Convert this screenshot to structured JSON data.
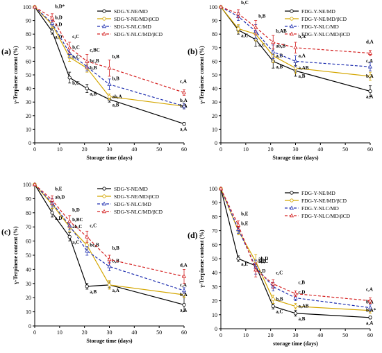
{
  "chart_data": [
    {
      "type": "line",
      "panel_label": "(a)",
      "xlabel": "Storage time (days)",
      "ylabel": "γ-Terpinene content (%)",
      "xlim": [
        0,
        60
      ],
      "ylim": [
        0,
        100
      ],
      "xticks": [
        0,
        10,
        20,
        30,
        40,
        50,
        60
      ],
      "yticks": [
        0,
        10,
        20,
        30,
        40,
        50,
        60,
        70,
        80,
        90,
        100
      ],
      "legend_position": "top-right",
      "x": [
        0,
        7,
        14,
        21,
        30,
        60
      ],
      "series": [
        {
          "name": "SDG-Y-NE/MD",
          "color": "#000000",
          "dashed": false,
          "values": [
            100,
            82,
            48,
            40,
            32,
            14
          ],
          "errors": [
            0,
            2,
            4,
            3,
            2,
            1
          ],
          "labels": [
            "",
            "a,D",
            "b,C",
            "a,B",
            "a,B",
            "a,A"
          ]
        },
        {
          "name": "SDG-Y-NE/MD/βCD",
          "color": "#d4a600",
          "dashed": false,
          "values": [
            100,
            87,
            63,
            55,
            34,
            27
          ],
          "errors": [
            0,
            2,
            3,
            3,
            2,
            2
          ],
          "labels": [
            "",
            "a,D",
            "b,C",
            "b,B",
            "ab,A",
            "b,A"
          ]
        },
        {
          "name": "SDG-Y-NLC/MD",
          "color": "#1f2fb0",
          "dashed": true,
          "values": [
            100,
            88,
            66,
            56,
            43,
            27
          ],
          "errors": [
            0,
            2,
            3,
            3,
            4,
            2
          ],
          "labels": [
            "",
            "b,D",
            "b,C",
            "bc,B",
            "b,B",
            "b,A"
          ]
        },
        {
          "name": "SDG-Y-NLC/MD/βCD",
          "color": "#d42020",
          "dashed": true,
          "values": [
            100,
            92,
            70,
            60,
            55,
            37
          ],
          "errors": [
            0,
            3,
            4,
            5,
            6,
            2
          ],
          "labels": [
            "",
            "b,D*",
            "c,C",
            "c,BC",
            "b,B",
            "c,A"
          ]
        }
      ]
    },
    {
      "type": "line",
      "panel_label": "(b)",
      "xlabel": "Storage time (days)",
      "ylabel": "γ-Terpinene content (%)",
      "xlim": [
        0,
        60
      ],
      "ylim": [
        0,
        100
      ],
      "xticks": [
        0,
        10,
        20,
        30,
        40,
        50,
        60
      ],
      "yticks": [
        0,
        10,
        20,
        30,
        40,
        50,
        60,
        70,
        80,
        90,
        100
      ],
      "legend_position": "top-right",
      "x": [
        0,
        7,
        14,
        21,
        30,
        60
      ],
      "series": [
        {
          "name": "FDG-Y-NE/MD",
          "color": "#000000",
          "dashed": false,
          "values": [
            100,
            83,
            76,
            60,
            53,
            38
          ],
          "errors": [
            0,
            3,
            5,
            5,
            4,
            4
          ],
          "labels": [
            "",
            "a,C",
            "a,C",
            "a,B",
            "a,B",
            "a,A"
          ]
        },
        {
          "name": "FDG-Y-NE/MD/βCD",
          "color": "#d4a600",
          "dashed": false,
          "values": [
            100,
            84,
            80,
            64,
            55,
            49
          ],
          "errors": [
            0,
            3,
            5,
            5,
            4,
            3
          ],
          "labels": [
            "",
            "",
            "",
            "a,B",
            "a,AB",
            "b,A"
          ]
        },
        {
          "name": "FDG-Y-NLC/MD",
          "color": "#1f2fb0",
          "dashed": true,
          "values": [
            100,
            93,
            82,
            67,
            60,
            56
          ],
          "errors": [
            0,
            3,
            5,
            5,
            4,
            3
          ],
          "labels": [
            "",
            "",
            "",
            "ab,B",
            "a,A",
            "c,A"
          ]
        },
        {
          "name": "FDG-Y-NLC/MD/βCD",
          "color": "#d42020",
          "dashed": true,
          "values": [
            100,
            95,
            85,
            74,
            70,
            66
          ],
          "errors": [
            0,
            3,
            5,
            5,
            4,
            2
          ],
          "labels": [
            "",
            "b,C",
            "b,B",
            "b,AB",
            "b,A",
            "d,A"
          ]
        }
      ]
    },
    {
      "type": "line",
      "panel_label": "(c)",
      "xlabel": "Storage time (days)",
      "ylabel": "γ-Terpinene content (%)",
      "xlim": [
        0,
        60
      ],
      "ylim": [
        0,
        100
      ],
      "xticks": [
        0,
        10,
        20,
        30,
        40,
        50,
        60
      ],
      "yticks": [
        0,
        10,
        20,
        30,
        40,
        50,
        60,
        70,
        80,
        90,
        100
      ],
      "legend_position": "top-right",
      "x": [
        0,
        7,
        14,
        21,
        30,
        60
      ],
      "series": [
        {
          "name": "SDG-Y-NE/MD",
          "color": "#000000",
          "dashed": false,
          "values": [
            100,
            80,
            63,
            28,
            29,
            15
          ],
          "errors": [
            0,
            3,
            3,
            2,
            2,
            5
          ],
          "labels": [
            "",
            "a,D",
            "a,C",
            "a,B",
            "a,A",
            "a,A"
          ]
        },
        {
          "name": "SDG-Y-NE/MD/βCD",
          "color": "#d4a600",
          "dashed": false,
          "values": [
            100,
            86,
            70,
            57,
            29,
            22
          ],
          "errors": [
            0,
            3,
            3,
            3,
            3,
            2
          ],
          "labels": [
            "",
            "",
            "ab,C",
            "bc,B",
            "",
            "b,A"
          ]
        },
        {
          "name": "SDG-Y-NLC/MD",
          "color": "#1f2fb0",
          "dashed": true,
          "values": [
            100,
            87,
            71,
            53,
            42,
            25
          ],
          "errors": [
            0,
            3,
            3,
            3,
            3,
            2
          ],
          "labels": [
            "",
            "ab,D",
            "b,BC",
            "",
            "b,B",
            "c,A"
          ]
        },
        {
          "name": "SDG-Y-NLC/MD/βCD",
          "color": "#d42020",
          "dashed": true,
          "values": [
            100,
            89,
            74,
            63,
            47,
            35
          ],
          "errors": [
            0,
            3,
            4,
            4,
            3,
            5
          ],
          "labels": [
            "",
            "b,E",
            "b,D",
            "c,C",
            "b,B",
            "d,A"
          ]
        }
      ]
    },
    {
      "type": "line",
      "panel_label": "(d)",
      "xlabel": "storage time (days)",
      "ylabel": "γ-Terpinene content (%)",
      "xlim": [
        0,
        60
      ],
      "ylim": [
        0,
        100
      ],
      "xticks": [
        0,
        10,
        20,
        30,
        40,
        50,
        60
      ],
      "yticks": [
        0,
        10,
        20,
        30,
        40,
        50,
        60,
        70,
        80,
        90,
        100
      ],
      "legend_position": "top-right",
      "x": [
        0,
        7,
        14,
        21,
        30,
        60
      ],
      "series": [
        {
          "name": "FDG-Y-NE/MD",
          "color": "#000000",
          "dashed": false,
          "values": [
            100,
            50,
            45,
            16,
            11,
            8
          ],
          "errors": [
            0,
            2,
            3,
            2,
            2,
            1
          ],
          "labels": [
            "",
            "a,E",
            "a,D",
            "a,C",
            "a,B",
            "a,A"
          ]
        },
        {
          "name": "FDG-Y-NE/MD/βCD",
          "color": "#d4a600",
          "dashed": false,
          "values": [
            100,
            70,
            48,
            21,
            16,
            13
          ],
          "errors": [
            0,
            3,
            5,
            3,
            2,
            2
          ],
          "labels": [
            "",
            "",
            "b,D",
            "b,B",
            "a,AB",
            "b,A*"
          ]
        },
        {
          "name": "FDG-Y-NLC/MD",
          "color": "#1f2fb0",
          "dashed": true,
          "values": [
            100,
            71,
            44,
            30,
            22,
            15
          ],
          "errors": [
            0,
            3,
            5,
            3,
            2,
            2
          ],
          "labels": [
            "",
            "b,E",
            "ab,C",
            "",
            "c,D",
            "b,A"
          ]
        },
        {
          "name": "FDG-Y-NLC/MD/βCD",
          "color": "#d42020",
          "dashed": true,
          "values": [
            100,
            74,
            42,
            32,
            25,
            20
          ],
          "errors": [
            0,
            3,
            5,
            3,
            2,
            2
          ],
          "labels": [
            "",
            "b,E",
            "ab,D",
            "c,C",
            "c,B",
            "c,A"
          ]
        }
      ]
    }
  ]
}
